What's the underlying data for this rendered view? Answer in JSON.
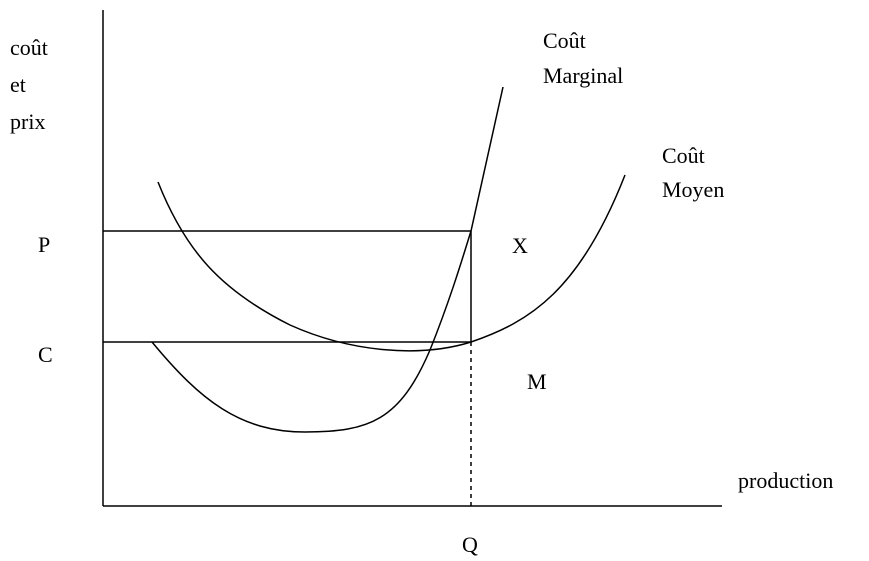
{
  "axis_labels": {
    "y": [
      "coût",
      "et",
      "prix"
    ],
    "x": "production"
  },
  "levels": {
    "price": "P",
    "cost": "C",
    "quantity": "Q"
  },
  "curves": {
    "marginal_cost": [
      "Coût",
      "Marginal"
    ],
    "average_cost": [
      "Coût",
      "Moyen"
    ]
  },
  "points": {
    "x": "X",
    "m": "M"
  }
}
